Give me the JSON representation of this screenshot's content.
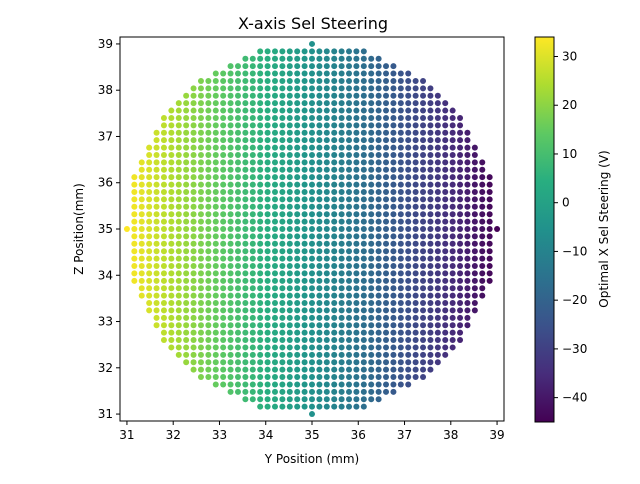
{
  "chart_data": {
    "type": "scatter",
    "title": "X-axis Sel Steering",
    "xlabel": "Y Position (mm)",
    "ylabel": "Z Position(mm)",
    "xlim": [
      30.85,
      39.15
    ],
    "ylim": [
      30.85,
      39.15
    ],
    "xticks": [
      "31",
      "32",
      "33",
      "34",
      "35",
      "36",
      "37",
      "38",
      "39"
    ],
    "yticks": [
      "31",
      "32",
      "33",
      "34",
      "35",
      "36",
      "37",
      "38",
      "39"
    ],
    "grid": false,
    "legend": "none",
    "marker": "filled circle",
    "grid_step": 0.16,
    "center": [
      35,
      35
    ],
    "radius": 4,
    "color_value_model": "value ≈ 34 − 78.75 × (Y − 31) / 8",
    "color_value_range": [
      -45,
      34
    ],
    "colorbar": {
      "label": "Optimal X Sel Steering (V)",
      "colormap": "viridis",
      "range": [
        -45,
        34
      ],
      "ticks": [
        "30",
        "20",
        "10",
        "0",
        "−10",
        "−20",
        "−30",
        "−40"
      ],
      "tick_values": [
        30,
        20,
        10,
        0,
        -10,
        -20,
        -30,
        -40
      ]
    }
  }
}
